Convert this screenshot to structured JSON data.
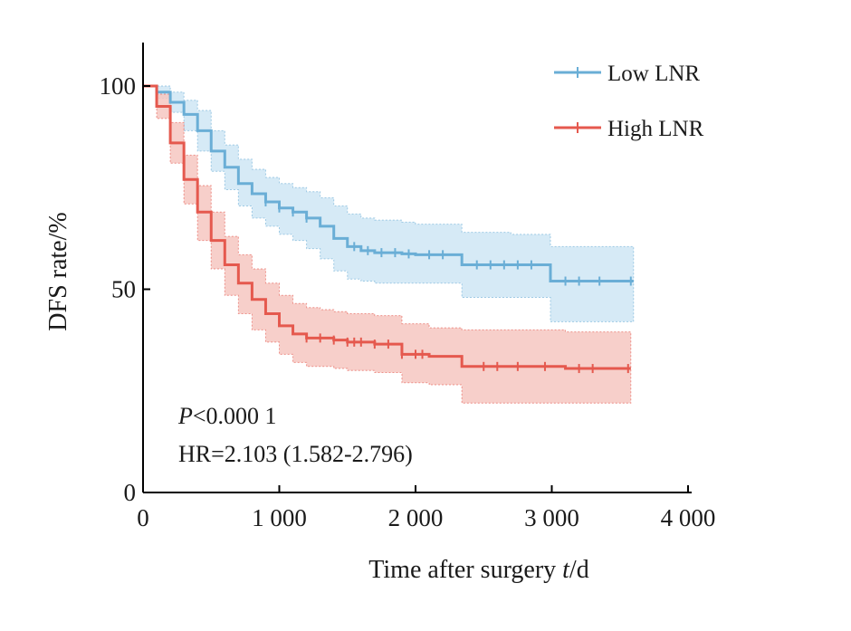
{
  "chart_data": {
    "type": "line",
    "subtype": "kaplan-meier",
    "xlabel": "Time after surgery t/d",
    "xlabel_parts": {
      "prefix": "Time after surgery ",
      "var": "t",
      "suffix": "/d"
    },
    "ylabel": "DFS rate/%",
    "xlim": [
      0,
      4000
    ],
    "ylim": [
      0,
      110
    ],
    "x_ticks": [
      0,
      1000,
      2000,
      3000,
      4000
    ],
    "x_tick_labels": [
      "0",
      "1 000",
      "2 000",
      "3 000",
      "4 000"
    ],
    "y_ticks": [
      0,
      50,
      100
    ],
    "y_tick_labels": [
      "0",
      "50",
      "100"
    ],
    "grid": false,
    "legend_position": "top-right",
    "annotations": {
      "p_symbol": "P",
      "p_value": "<0.000 1",
      "hr": "HR=2.103 (1.582-2.796)"
    },
    "series": [
      {
        "name": "Low LNR",
        "color": "#6aaed6",
        "band_color": "#cfe6f5",
        "x": [
          0,
          100,
          200,
          300,
          400,
          500,
          600,
          700,
          800,
          900,
          1000,
          1100,
          1200,
          1300,
          1400,
          1500,
          1600,
          1700,
          1800,
          1900,
          2000,
          2100,
          2200,
          2300,
          2340,
          2500,
          2700,
          2900,
          2990,
          3100,
          3300,
          3500,
          3600
        ],
        "y": [
          100,
          98.5,
          96,
          93,
          89,
          84,
          80,
          76,
          73.5,
          71.5,
          70,
          69,
          67.5,
          65.5,
          62.5,
          60.5,
          59.5,
          59,
          59,
          58.7,
          58.5,
          58.5,
          58.5,
          58.5,
          56,
          56,
          56,
          56,
          52,
          52,
          52,
          52,
          52
        ],
        "lower": [
          100,
          97,
          93.5,
          89,
          84,
          79,
          74.5,
          70.5,
          67.5,
          65.5,
          63.5,
          62,
          60,
          57.5,
          54.5,
          52.5,
          52,
          51.5,
          51.5,
          51.5,
          51.5,
          51.5,
          51.5,
          51.5,
          48,
          48,
          48,
          48,
          42,
          42,
          42,
          42,
          42
        ],
        "upper": [
          100,
          100,
          98.5,
          96.5,
          94,
          89,
          85.5,
          82,
          79.5,
          77.5,
          76,
          75,
          74,
          72.5,
          70.5,
          68.5,
          67.5,
          67,
          67,
          66.5,
          66,
          66,
          66,
          66,
          64,
          64,
          63.5,
          63.5,
          60.5,
          60.5,
          60.5,
          60.5,
          60.5
        ],
        "censor_x": [
          900,
          1000,
          1100,
          1200,
          1550,
          1650,
          1750,
          1850,
          1950,
          2100,
          2200,
          2450,
          2550,
          2650,
          2750,
          2850,
          3100,
          3200,
          3350,
          3580
        ]
      },
      {
        "name": "High LNR",
        "color": "#e5594e",
        "band_color": "#f6c7c1",
        "x": [
          0,
          100,
          200,
          300,
          400,
          500,
          600,
          700,
          800,
          900,
          1000,
          1100,
          1200,
          1300,
          1400,
          1500,
          1700,
          1900,
          2100,
          2300,
          2340,
          2500,
          2700,
          2900,
          3100,
          3300,
          3500,
          3580
        ],
        "y": [
          100,
          95,
          86,
          77,
          69,
          62,
          56,
          51.5,
          47.5,
          44,
          41,
          39,
          38,
          38,
          37.5,
          37,
          36.5,
          34,
          33.5,
          33.5,
          31,
          31,
          31,
          31,
          30.5,
          30.5,
          30.5,
          30.5
        ],
        "lower": [
          100,
          92,
          81,
          71,
          62,
          55,
          48.5,
          44,
          40,
          37,
          34,
          32,
          31,
          31,
          30.5,
          30,
          29.5,
          27,
          26.5,
          26.5,
          22,
          22,
          22,
          22,
          22,
          22,
          22,
          22
        ],
        "upper": [
          100,
          98,
          91,
          83,
          75.5,
          69,
          63,
          58.5,
          55,
          51.5,
          48.5,
          46.5,
          45.5,
          45,
          44.5,
          44,
          43.5,
          41.5,
          40.5,
          40.5,
          40,
          40,
          40,
          40,
          39.5,
          39.5,
          39.5,
          39.5
        ],
        "censor_x": [
          1200,
          1300,
          1400,
          1500,
          1550,
          1600,
          1700,
          1800,
          1900,
          2000,
          2050,
          2500,
          2600,
          2750,
          2950,
          3200,
          3300,
          3560
        ]
      }
    ]
  }
}
